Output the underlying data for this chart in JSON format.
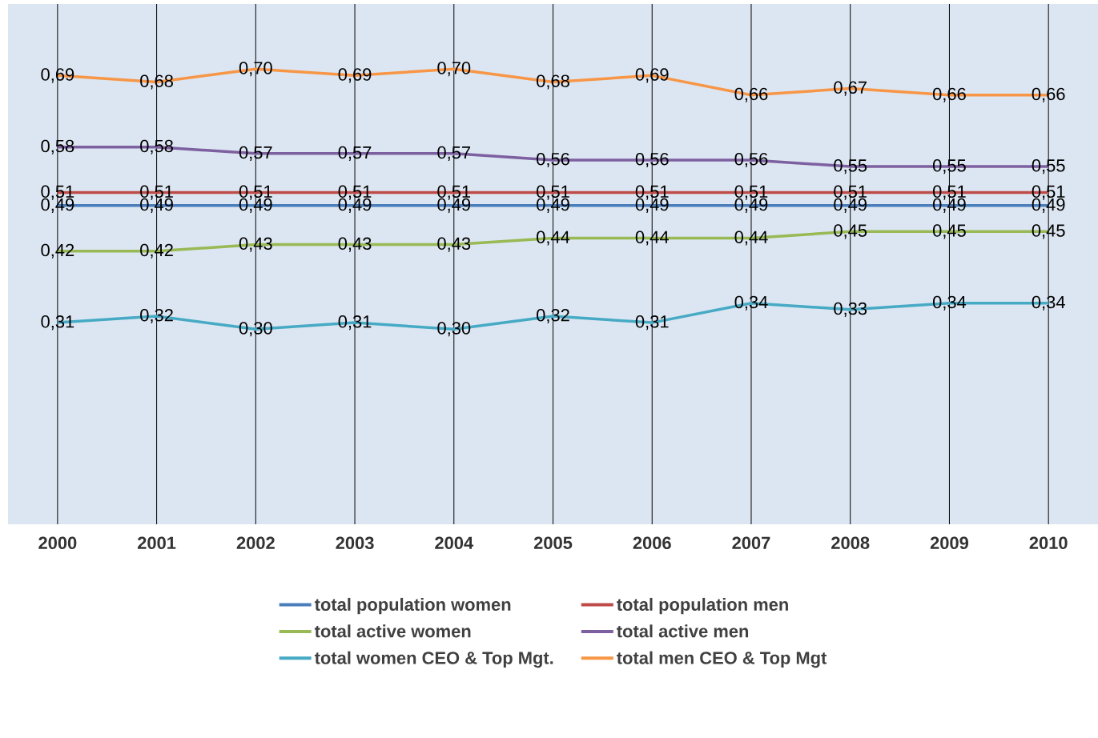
{
  "chart_data": {
    "type": "line",
    "categories": [
      "2000",
      "2001",
      "2002",
      "2003",
      "2004",
      "2005",
      "2006",
      "2007",
      "2008",
      "2009",
      "2010"
    ],
    "series": [
      {
        "name": "total population women",
        "color": "#4a7ebb",
        "values": [
          0.49,
          0.49,
          0.49,
          0.49,
          0.49,
          0.49,
          0.49,
          0.49,
          0.49,
          0.49,
          0.49
        ],
        "value_labels": [
          "0,49",
          "0,49",
          "0,49",
          "0,49",
          "0,49",
          "0,49",
          "0,49",
          "0,49",
          "0,49",
          "0,49",
          "0,49"
        ]
      },
      {
        "name": "total population men",
        "color": "#be4b48",
        "values": [
          0.51,
          0.51,
          0.51,
          0.51,
          0.51,
          0.51,
          0.51,
          0.51,
          0.51,
          0.51,
          0.51
        ],
        "value_labels": [
          "0,51",
          "0,51",
          "0,51",
          "0,51",
          "0,51",
          "0,51",
          "0,51",
          "0,51",
          "0,51",
          "0,51",
          "0,51"
        ]
      },
      {
        "name": "total active women",
        "color": "#98b954",
        "values": [
          0.42,
          0.42,
          0.43,
          0.43,
          0.43,
          0.44,
          0.44,
          0.44,
          0.45,
          0.45,
          0.45
        ],
        "value_labels": [
          "0,42",
          "0,42",
          "0,43",
          "0,43",
          "0,43",
          "0,44",
          "0,44",
          "0,44",
          "0,45",
          "0,45",
          "0,45"
        ]
      },
      {
        "name": "total active men",
        "color": "#7d60a0",
        "values": [
          0.58,
          0.58,
          0.57,
          0.57,
          0.57,
          0.56,
          0.56,
          0.56,
          0.55,
          0.55,
          0.55
        ],
        "value_labels": [
          "0,58",
          "0,58",
          "0,57",
          "0,57",
          "0,57",
          "0,56",
          "0,56",
          "0,56",
          "0,55",
          "0,55",
          "0,55"
        ]
      },
      {
        "name": "total women CEO & Top Mgt.",
        "color": "#46aac5",
        "values": [
          0.31,
          0.32,
          0.3,
          0.31,
          0.3,
          0.32,
          0.31,
          0.34,
          0.33,
          0.34,
          0.34
        ],
        "value_labels": [
          "0,31",
          "0,32",
          "0,30",
          "0,31",
          "0,30",
          "0,32",
          "0,31",
          "0,34",
          "0,33",
          "0,34",
          "0,34"
        ]
      },
      {
        "name": "total men CEO & Top Mgt",
        "color": "#f79646",
        "values": [
          0.69,
          0.68,
          0.7,
          0.69,
          0.7,
          0.68,
          0.69,
          0.66,
          0.67,
          0.66,
          0.66
        ],
        "value_labels": [
          "0,69",
          "0,68",
          "0,70",
          "0,69",
          "0,70",
          "0,68",
          "0,69",
          "0,66",
          "0,67",
          "0,66",
          "0,66"
        ]
      }
    ],
    "ylim": [
      0,
      0.8
    ],
    "grid": "x",
    "legend": "bottom"
  }
}
